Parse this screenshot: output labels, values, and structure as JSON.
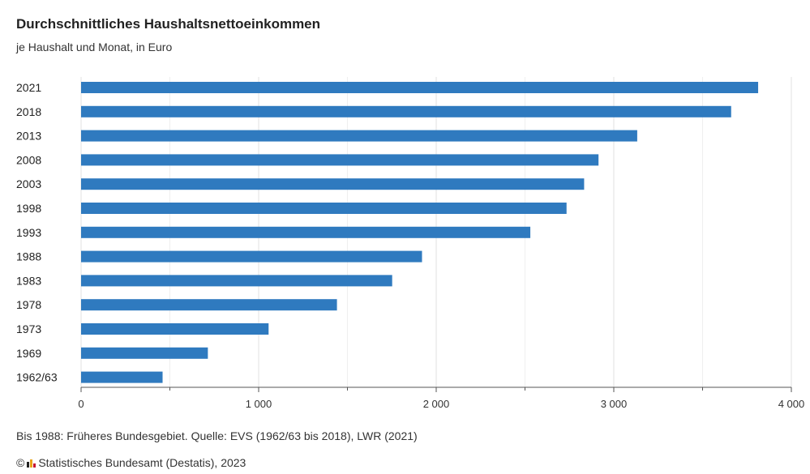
{
  "chart_data": {
    "type": "bar",
    "orientation": "horizontal",
    "title": "Durchschnittliches Haushaltsnettoeinkommen",
    "subtitle": "je Haushalt und Monat, in Euro",
    "categories": [
      "2021",
      "2018",
      "2013",
      "2008",
      "2003",
      "1998",
      "1993",
      "1988",
      "1983",
      "1978",
      "1973",
      "1969",
      "1962/63"
    ],
    "values": [
      3813,
      3661,
      3132,
      2914,
      2833,
      2734,
      2530,
      1920,
      1752,
      1441,
      1056,
      714,
      459
    ],
    "xlim": [
      0,
      4000
    ],
    "xticks": [
      0,
      1000,
      2000,
      3000,
      4000
    ],
    "xtick_labels": [
      "0",
      "1 000",
      "2 000",
      "3 000",
      "4 000"
    ],
    "bar_color": "#2f7abf",
    "grid": "vertical"
  },
  "footnote": "Bis 1988: Früheres Bundesgebiet. Quelle: EVS (1962/63 bis 2018), LWR (2021)",
  "credit": {
    "copyright": "©",
    "logo_icon": "destatis-logo-icon",
    "text": "Statistisches Bundesamt (Destatis), 2023"
  }
}
